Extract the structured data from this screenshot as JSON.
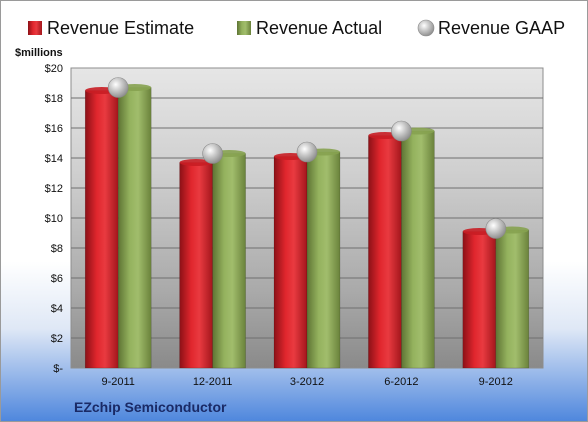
{
  "chart_data": {
    "type": "bar",
    "title": "",
    "company": "EZchip Semiconductor",
    "ylabel": "$millions",
    "xlabel": "",
    "categories": [
      "9-2011",
      "12-2011",
      "3-2012",
      "6-2012",
      "9-2012"
    ],
    "ylim": [
      0,
      20
    ],
    "y_ticks": [
      {
        "value": 0,
        "label": "$-"
      },
      {
        "value": 2,
        "label": "$2"
      },
      {
        "value": 4,
        "label": "$4"
      },
      {
        "value": 6,
        "label": "$6"
      },
      {
        "value": 8,
        "label": "$8"
      },
      {
        "value": 10,
        "label": "$10"
      },
      {
        "value": 12,
        "label": "$12"
      },
      {
        "value": 14,
        "label": "$14"
      },
      {
        "value": 16,
        "label": "$16"
      },
      {
        "value": 18,
        "label": "$18"
      },
      {
        "value": 20,
        "label": "$20"
      }
    ],
    "series": [
      {
        "name": "Revenue Estimate",
        "kind": "bar",
        "color": "#d9232a",
        "values": [
          18.5,
          13.7,
          14.1,
          15.5,
          9.1
        ]
      },
      {
        "name": "Revenue Actual",
        "kind": "bar",
        "color": "#8fac5a",
        "values": [
          18.7,
          14.3,
          14.4,
          15.8,
          9.2
        ]
      },
      {
        "name": "Revenue GAAP",
        "kind": "marker",
        "color": "#b9b9b9",
        "values": [
          18.7,
          14.3,
          14.4,
          15.8,
          9.3
        ]
      }
    ],
    "legend_position": "top",
    "grid": true
  }
}
